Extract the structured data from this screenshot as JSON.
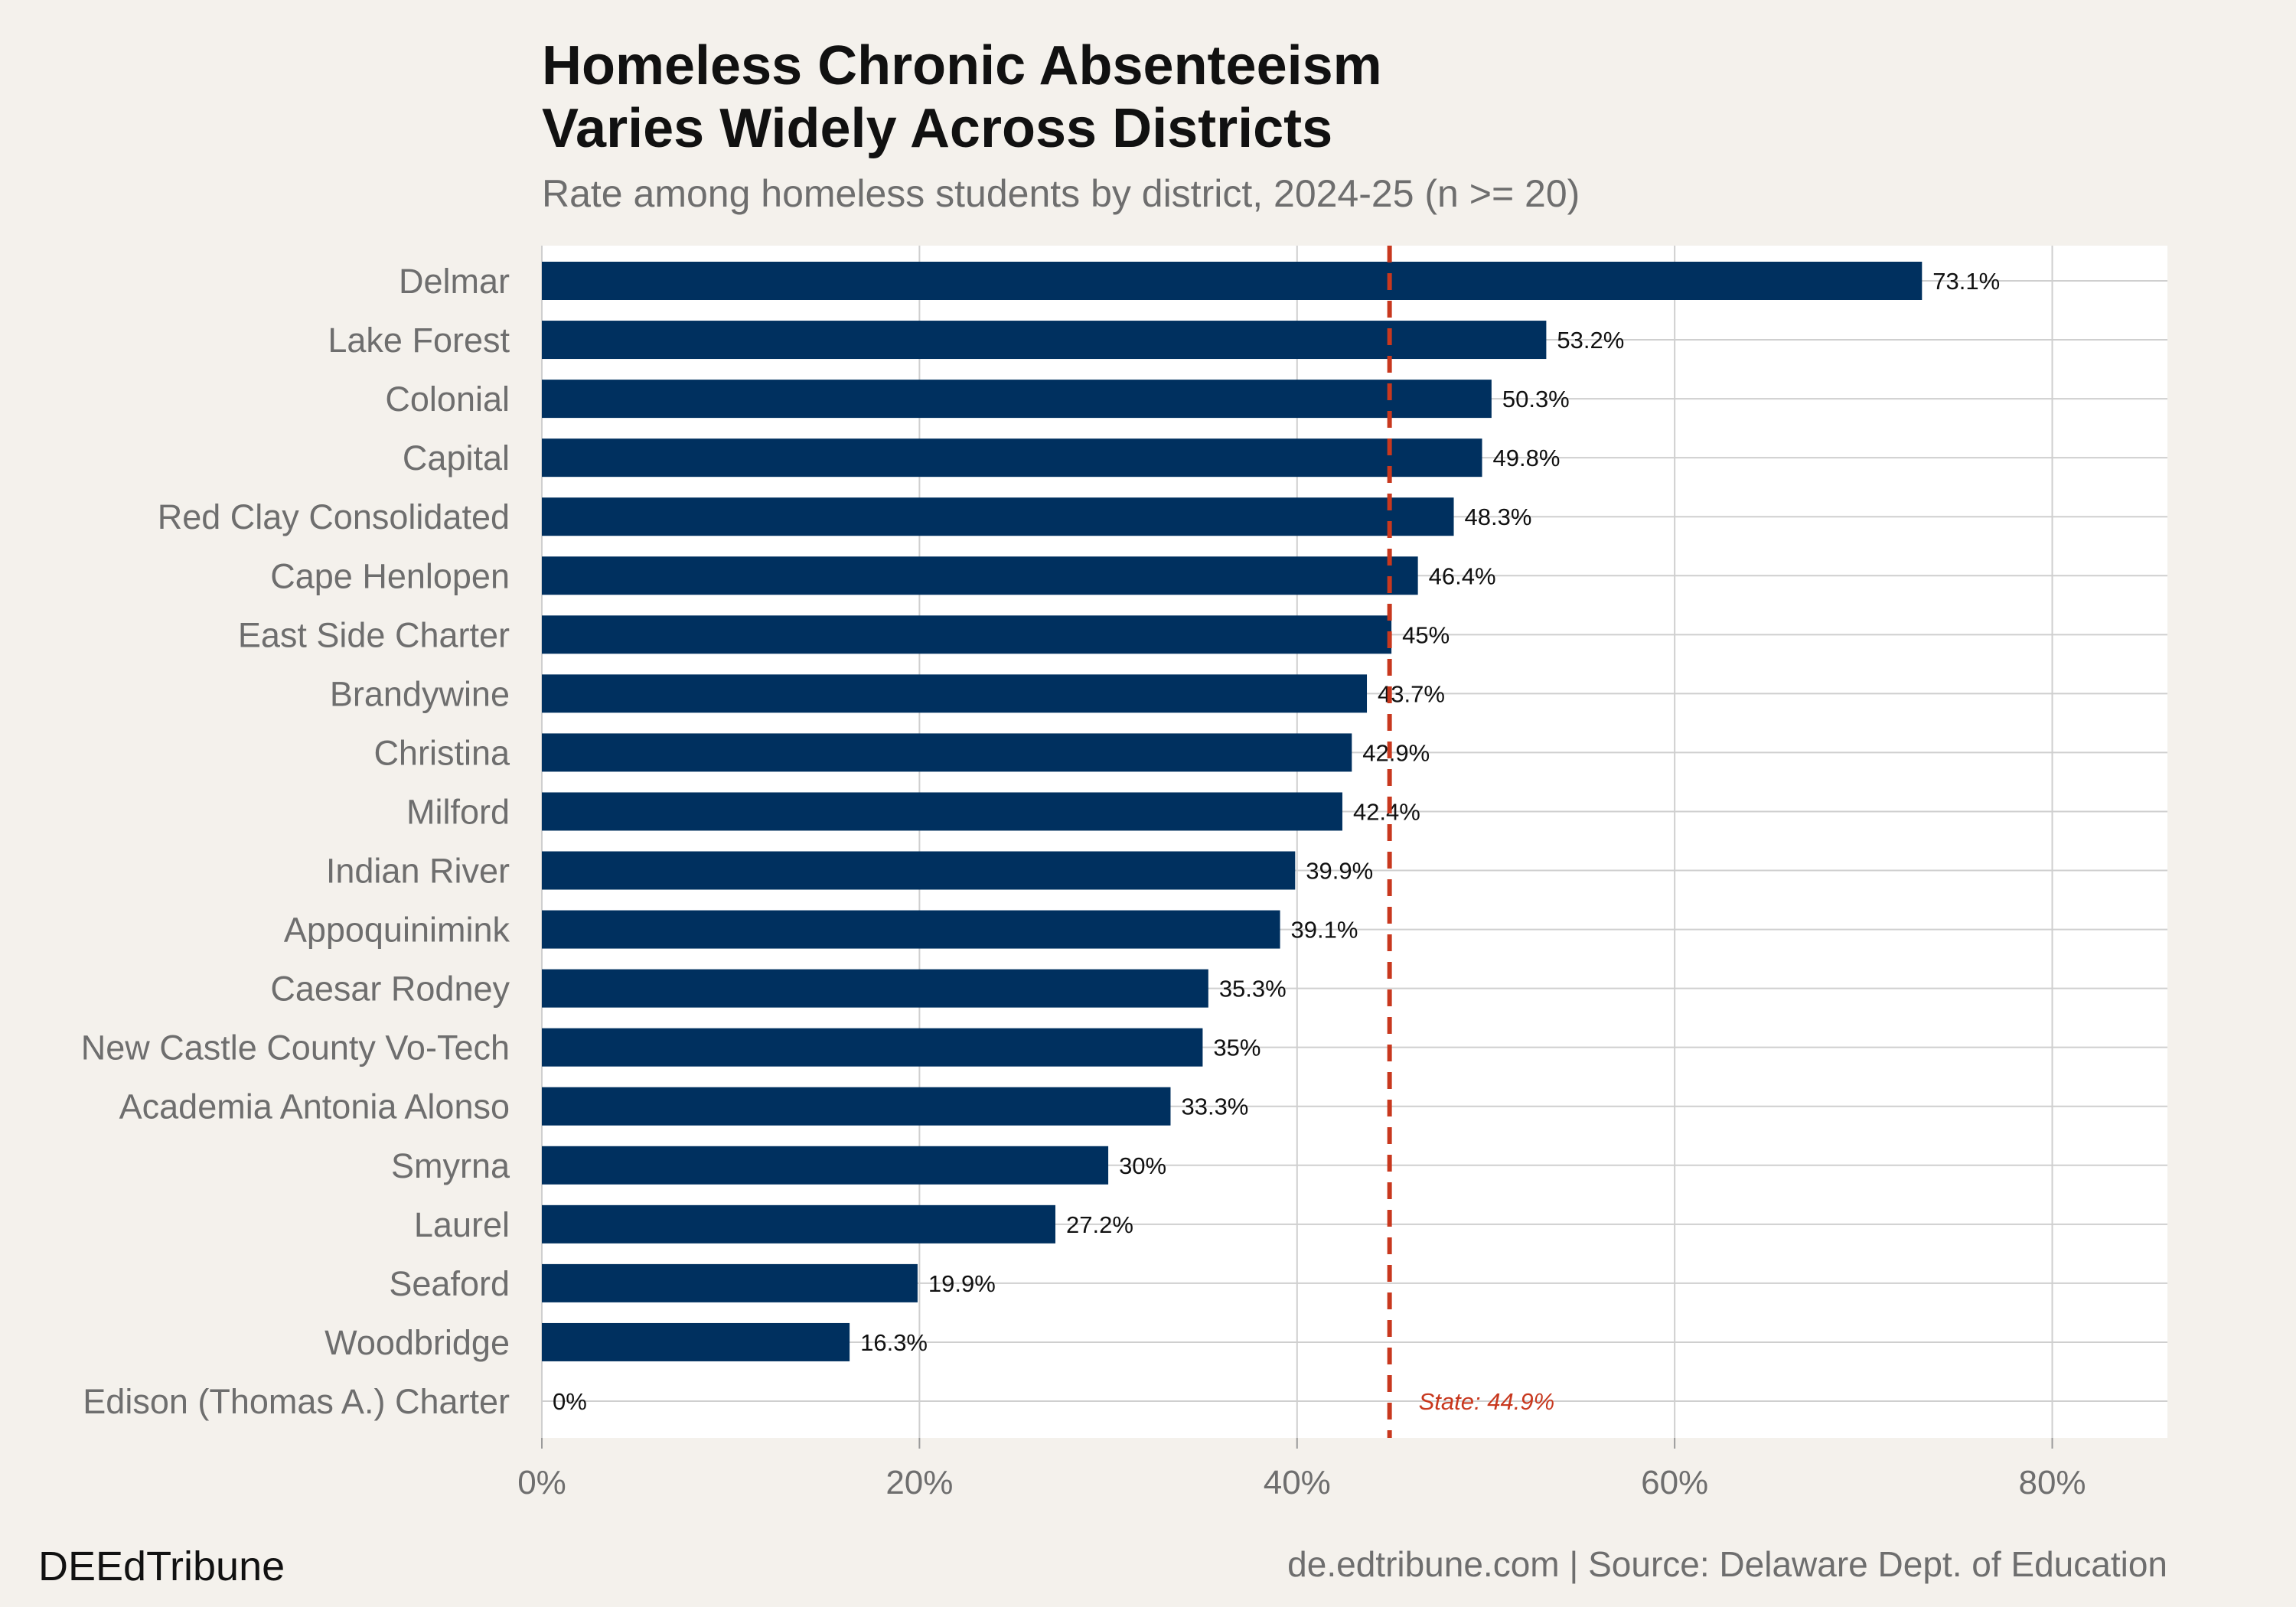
{
  "chart_data": {
    "type": "hbar",
    "title": [
      "Homeless Chronic Absenteeism",
      "Varies Widely Across Districts"
    ],
    "subtitle": "Rate among homeless students by district, 2024-25 (n >= 20)",
    "categories": [
      "Delmar",
      "Lake Forest",
      "Colonial",
      "Capital",
      "Red Clay Consolidated",
      "Cape Henlopen",
      "East Side Charter",
      "Brandywine",
      "Christina",
      "Milford",
      "Indian River",
      "Appoquinimink",
      "Caesar Rodney",
      "New Castle County Vo-Tech",
      "Academia Antonia Alonso",
      "Smyrna",
      "Laurel",
      "Seaford",
      "Woodbridge",
      "Edison (Thomas A.) Charter"
    ],
    "values": [
      73.1,
      53.2,
      50.3,
      49.8,
      48.3,
      46.4,
      45,
      43.7,
      42.9,
      42.4,
      39.9,
      39.1,
      35.3,
      35,
      33.3,
      30,
      27.2,
      19.9,
      16.3,
      0
    ],
    "value_labels": [
      "73.1%",
      "53.2%",
      "50.3%",
      "49.8%",
      "48.3%",
      "46.4%",
      "45%",
      "43.7%",
      "42.9%",
      "42.4%",
      "39.9%",
      "39.1%",
      "35.3%",
      "35%",
      "33.3%",
      "30%",
      "27.2%",
      "19.9%",
      "16.3%",
      "0%"
    ],
    "color": "#00305f",
    "xlim": [
      0,
      86.1
    ],
    "xticks": [
      {
        "value": 0,
        "label": "0%"
      },
      {
        "value": 20,
        "label": "20%"
      },
      {
        "value": 40,
        "label": "40%"
      },
      {
        "value": 60,
        "label": "60%"
      },
      {
        "value": 80,
        "label": "80%"
      }
    ],
    "grid": true,
    "reference_line": {
      "value": 44.9,
      "label": "State: 44.9%",
      "color": "#c8381e"
    },
    "caption_left": "DEEdTribune",
    "caption_right": "de.edtribune.com | Source: Delaware Dept. of Education"
  }
}
